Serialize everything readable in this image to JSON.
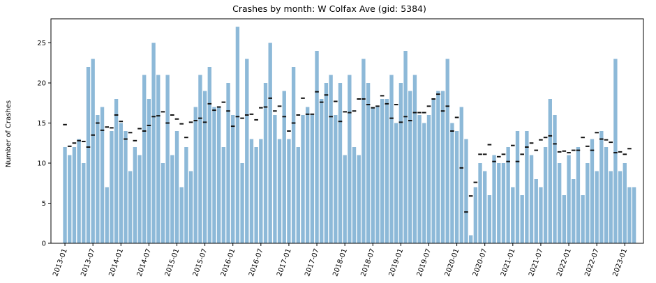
{
  "chart_data": {
    "type": "bar",
    "title": "Crashes by month: W Colfax Ave (gid: 5384)",
    "xlabel": "",
    "ylabel": "Number of Crashes",
    "ylim": [
      0,
      28
    ],
    "yticks": [
      0,
      5,
      10,
      15,
      20,
      25
    ],
    "xlim": [
      "2012-10",
      "2023-05"
    ],
    "xticks": [
      "2013-01",
      "2013-07",
      "2014-01",
      "2014-07",
      "2015-01",
      "2015-07",
      "2016-01",
      "2016-07",
      "2017-01",
      "2017-07",
      "2018-01",
      "2018-07",
      "2019-01",
      "2019-07",
      "2020-01",
      "2020-07",
      "2021-01",
      "2021-07",
      "2022-01",
      "2022-07",
      "2023-01"
    ],
    "grid": false,
    "start_month": "2013-01",
    "series": [
      {
        "type": "bar",
        "color": "#8db9d8",
        "values": [
          12,
          11,
          12,
          13,
          10,
          22,
          23,
          16,
          17,
          7,
          14,
          18,
          15,
          14,
          9,
          12,
          11,
          21,
          18,
          25,
          21,
          10,
          21,
          11,
          14,
          7,
          12,
          9,
          17,
          21,
          19,
          22,
          17,
          17,
          12,
          20,
          16,
          27,
          10,
          23,
          13,
          12,
          13,
          20,
          25,
          16,
          13,
          19,
          13,
          22,
          12,
          16,
          17,
          16,
          24,
          18,
          20,
          21,
          16,
          20,
          11,
          21,
          12,
          11,
          23,
          20,
          17,
          17,
          18,
          18,
          21,
          15,
          20,
          24,
          19,
          21,
          16,
          15,
          16,
          18,
          19,
          19,
          23,
          15,
          14,
          17,
          13,
          1,
          7,
          10,
          9,
          6,
          11,
          10,
          10,
          12,
          7,
          14,
          6,
          14,
          11,
          8,
          7,
          12,
          18,
          16,
          10,
          6,
          11,
          8,
          12,
          6,
          10,
          13,
          9,
          14,
          12,
          9,
          23,
          9,
          10,
          7,
          7
        ]
      },
      {
        "type": "marker",
        "color": "#111111",
        "values": [
          14.8,
          12.1,
          12.5,
          12.8,
          12.7,
          12.0,
          13.5,
          15.0,
          14.1,
          14.5,
          14.4,
          16.0,
          15.2,
          13.0,
          13.8,
          12.8,
          14.3,
          14.0,
          14.7,
          15.8,
          15.9,
          16.4,
          15.0,
          16.0,
          15.5,
          14.9,
          13.2,
          15.1,
          15.3,
          15.6,
          15.1,
          17.4,
          16.6,
          17.0,
          17.6,
          16.5,
          14.6,
          15.8,
          15.6,
          16.0,
          16.1,
          15.4,
          16.9,
          17.0,
          18.1,
          16.5,
          17.1,
          15.8,
          14.0,
          15.0,
          16.0,
          18.1,
          16.1,
          16.1,
          18.9,
          17.6,
          18.5,
          15.8,
          17.7,
          15.2,
          16.4,
          16.3,
          16.5,
          18.0,
          18.0,
          17.3,
          16.9,
          17.1,
          18.4,
          17.4,
          15.6,
          17.3,
          15.1,
          15.8,
          15.3,
          16.3,
          16.3,
          16.3,
          17.1,
          18.0,
          18.6,
          16.5,
          17.1,
          14.0,
          15.7,
          9.4,
          3.9,
          5.9,
          7.6,
          11.1,
          11.1,
          12.3,
          10.2,
          10.8,
          11.1,
          10.2,
          12.2,
          10.2,
          11.1,
          12.0,
          12.5,
          11.6,
          12.9,
          13.2,
          13.4,
          12.4,
          11.4,
          11.5,
          11.3,
          11.6,
          11.6,
          13.2,
          12.1,
          11.6,
          13.8,
          13.0,
          12.9,
          12.6,
          11.3,
          11.4,
          11.1,
          11.8
        ]
      }
    ]
  }
}
